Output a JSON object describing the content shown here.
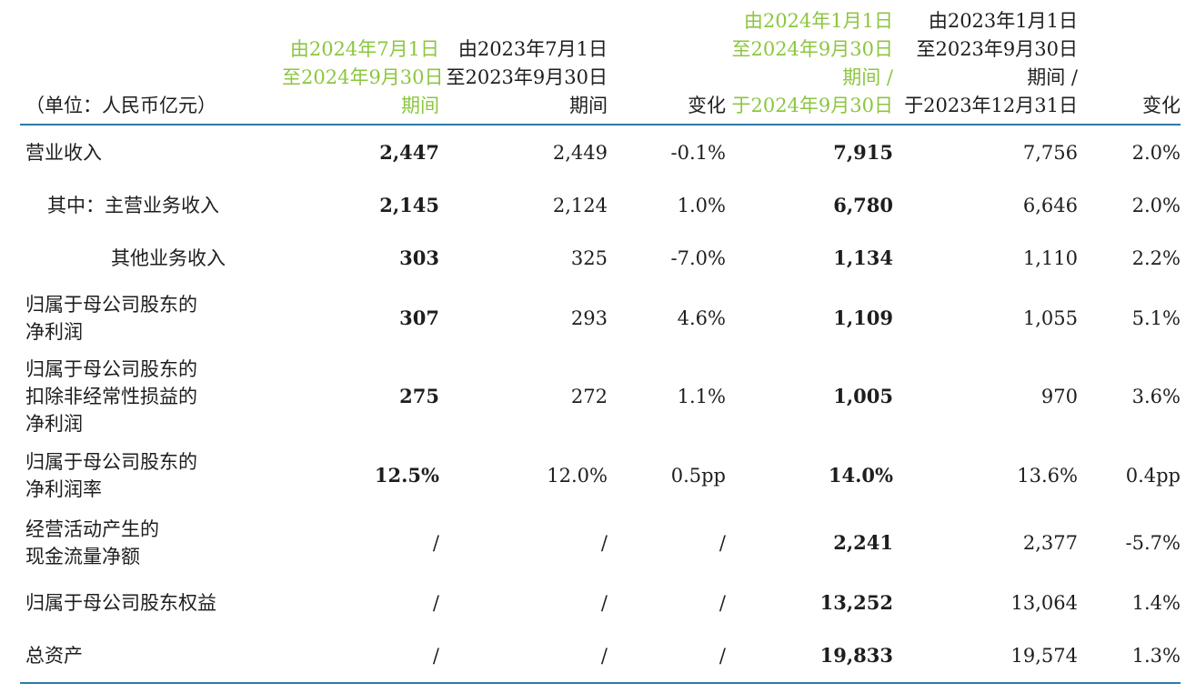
{
  "header": {
    "unit_label": "（单位：人民币亿元）",
    "col1": [
      "由2024年7月1日",
      "至2024年9月30日",
      "期间"
    ],
    "col2": [
      "由2023年7月1日",
      "至2023年9月30日",
      "期间"
    ],
    "col3": [
      "变化"
    ],
    "col4": [
      "由2024年1月1日",
      "至2024年9月30日",
      "期间 /",
      "于2024年9月30日"
    ],
    "col5": [
      "由2023年1月1日",
      "至2023年9月30日",
      "期间 /",
      "于2023年12月31日"
    ],
    "col6": [
      "变化"
    ]
  },
  "rows": [
    {
      "label": [
        "营业收入"
      ],
      "values": [
        "2,447",
        "2,449",
        "-0.1%",
        "7,915",
        "7,756",
        "2.0%"
      ]
    },
    {
      "label": [
        "其中：主营业务收入"
      ],
      "values": [
        "2,145",
        "2,124",
        "1.0%",
        "6,780",
        "6,646",
        "2.0%"
      ]
    },
    {
      "label": [
        "其他业务收入"
      ],
      "values": [
        "303",
        "325",
        "-7.0%",
        "1,134",
        "1,110",
        "2.2%"
      ]
    },
    {
      "label": [
        "归属于母公司股东的",
        "净利润"
      ],
      "values": [
        "307",
        "293",
        "4.6%",
        "1,109",
        "1,055",
        "5.1%"
      ]
    },
    {
      "label": [
        "归属于母公司股东的",
        "扣除非经常性损益的",
        "净利润"
      ],
      "values": [
        "275",
        "272",
        "1.1%",
        "1,005",
        "970",
        "3.6%"
      ]
    },
    {
      "label": [
        "归属于母公司股东的",
        "净利润率"
      ],
      "values": [
        "12.5%",
        "12.0%",
        "0.5pp",
        "14.0%",
        "13.6%",
        "0.4pp"
      ]
    },
    {
      "label": [
        "经营活动产生的",
        "现金流量净额"
      ],
      "values": [
        "/",
        "/",
        "/",
        "2,241",
        "2,377",
        "-5.7%"
      ]
    },
    {
      "label": [
        "归属于母公司股东权益"
      ],
      "values": [
        "/",
        "/",
        "/",
        "13,252",
        "13,064",
        "1.4%"
      ]
    },
    {
      "label": [
        "总资产"
      ],
      "values": [
        "/",
        "/",
        "/",
        "19,833",
        "19,574",
        "1.3%"
      ]
    }
  ],
  "colors": {
    "highlight": "#8cc63f",
    "rule": "#2e7aa6"
  }
}
